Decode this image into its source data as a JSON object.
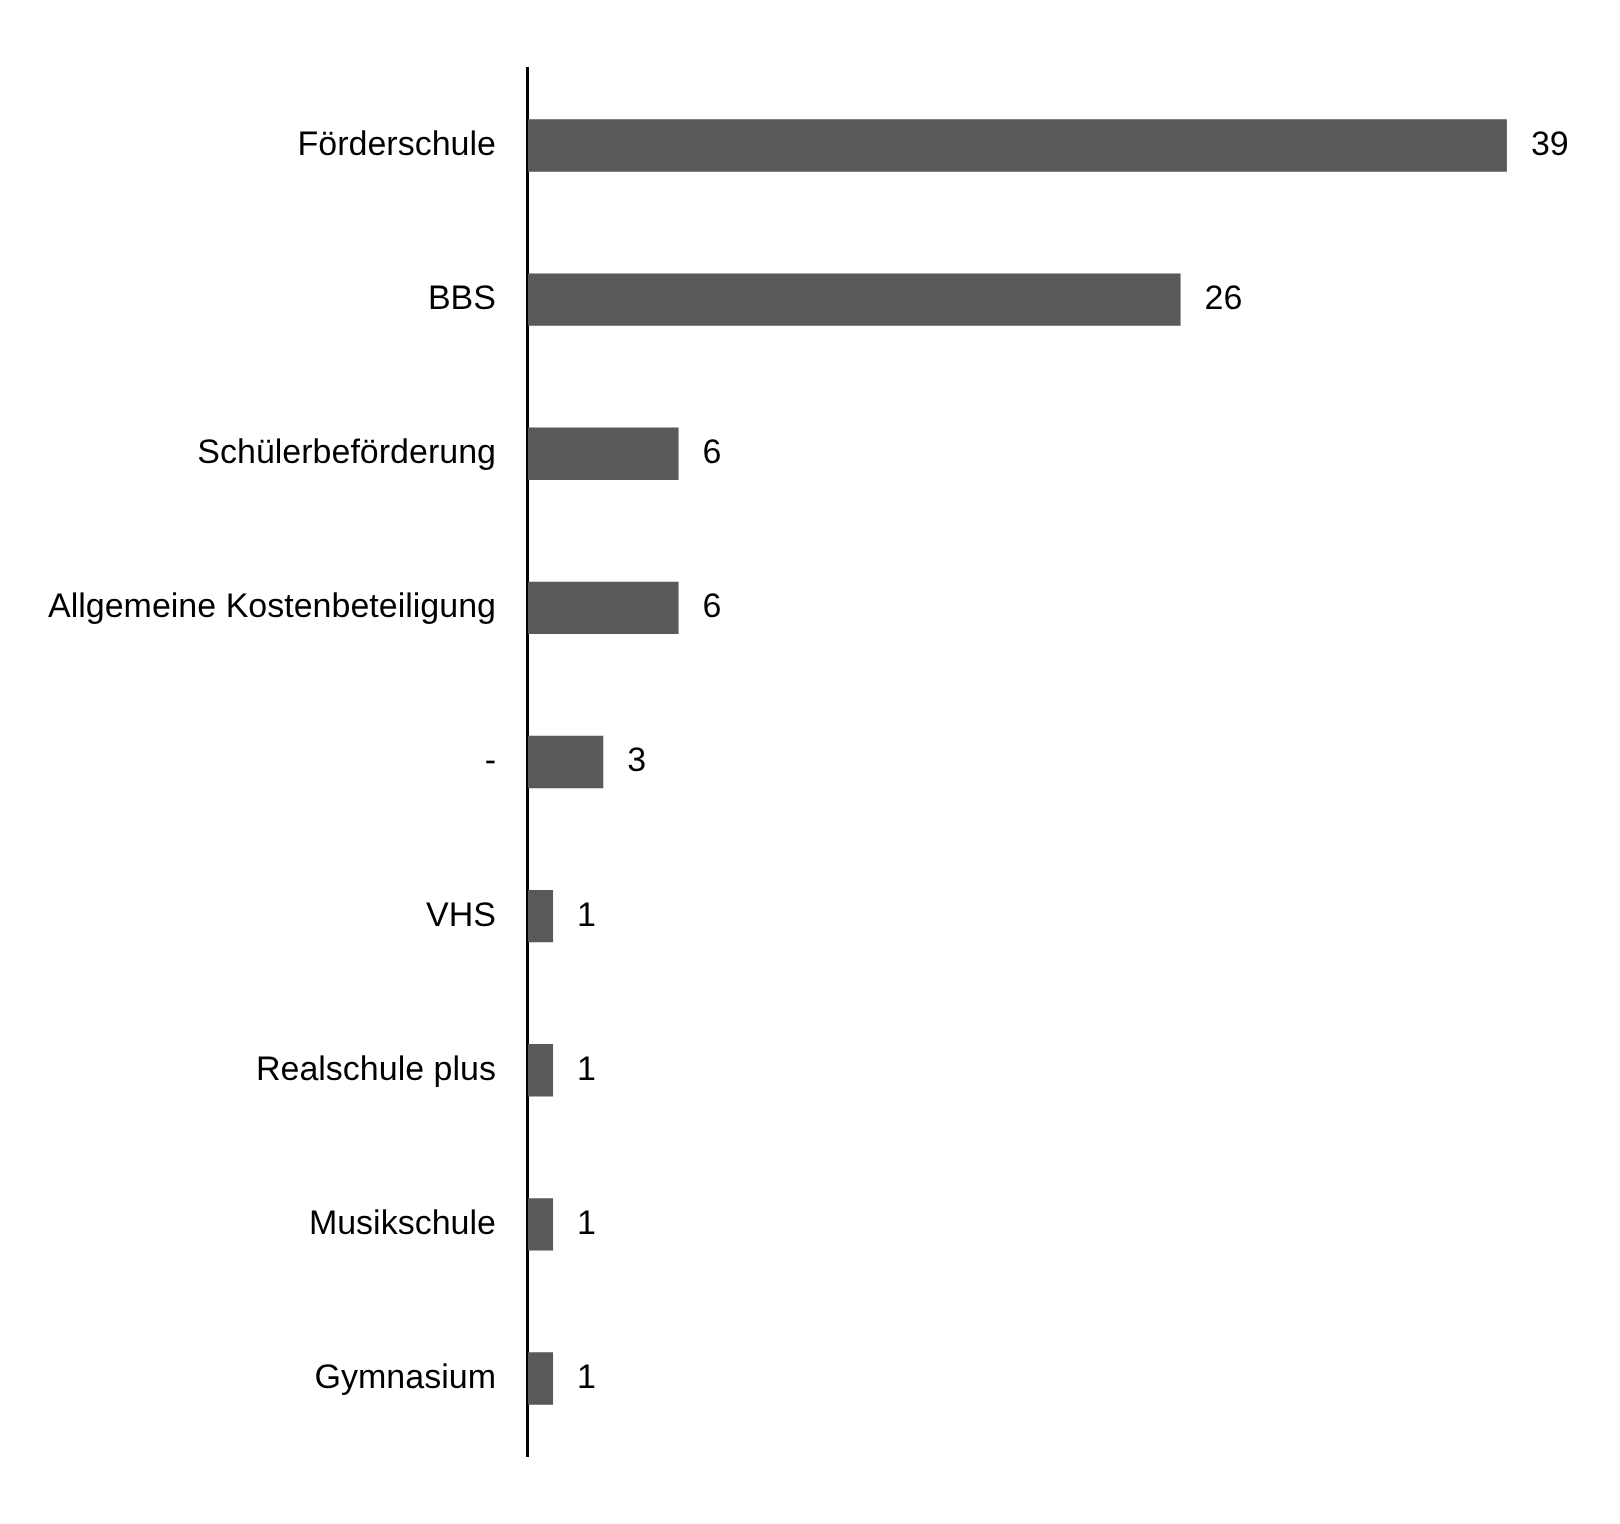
{
  "chart_data": {
    "type": "bar",
    "orientation": "horizontal",
    "categories": [
      "Förderschule",
      "BBS",
      "Schülerbeförderung",
      "Allgemeine Kostenbeteiligung",
      "-",
      "VHS",
      "Realschule plus",
      "Musikschule",
      "Gymnasium"
    ],
    "values": [
      39,
      26,
      6,
      6,
      3,
      1,
      1,
      1,
      1
    ],
    "color": "#595959",
    "data_labels": true,
    "tick_labels": "y"
  }
}
